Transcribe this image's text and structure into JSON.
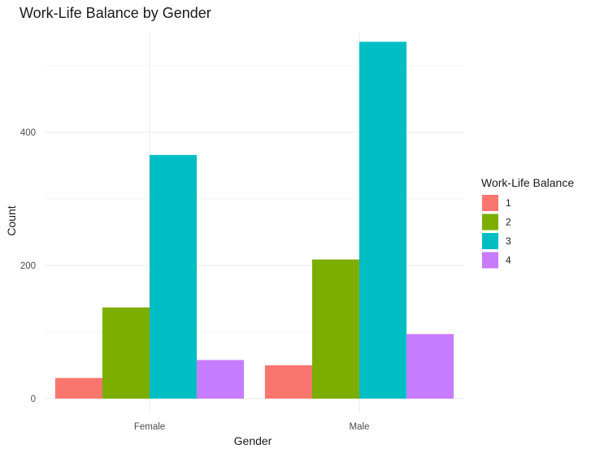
{
  "chart_data": {
    "type": "bar",
    "title": "Work-Life Balance by Gender",
    "xlabel": "Gender",
    "ylabel": "Count",
    "categories": [
      "Female",
      "Male"
    ],
    "series": [
      {
        "name": "1",
        "values": [
          31,
          50
        ],
        "color": "#F8766D"
      },
      {
        "name": "2",
        "values": [
          137,
          209
        ],
        "color": "#7CAE00"
      },
      {
        "name": "3",
        "values": [
          366,
          536
        ],
        "color": "#00BFC4"
      },
      {
        "name": "4",
        "values": [
          58,
          97
        ],
        "color": "#C77CFF"
      }
    ],
    "yticks": [
      0,
      200,
      400
    ],
    "ylim": [
      0,
      560
    ],
    "grid": true,
    "legend": {
      "title": "Work-Life Balance",
      "position": "right"
    },
    "theme": "minimal"
  }
}
